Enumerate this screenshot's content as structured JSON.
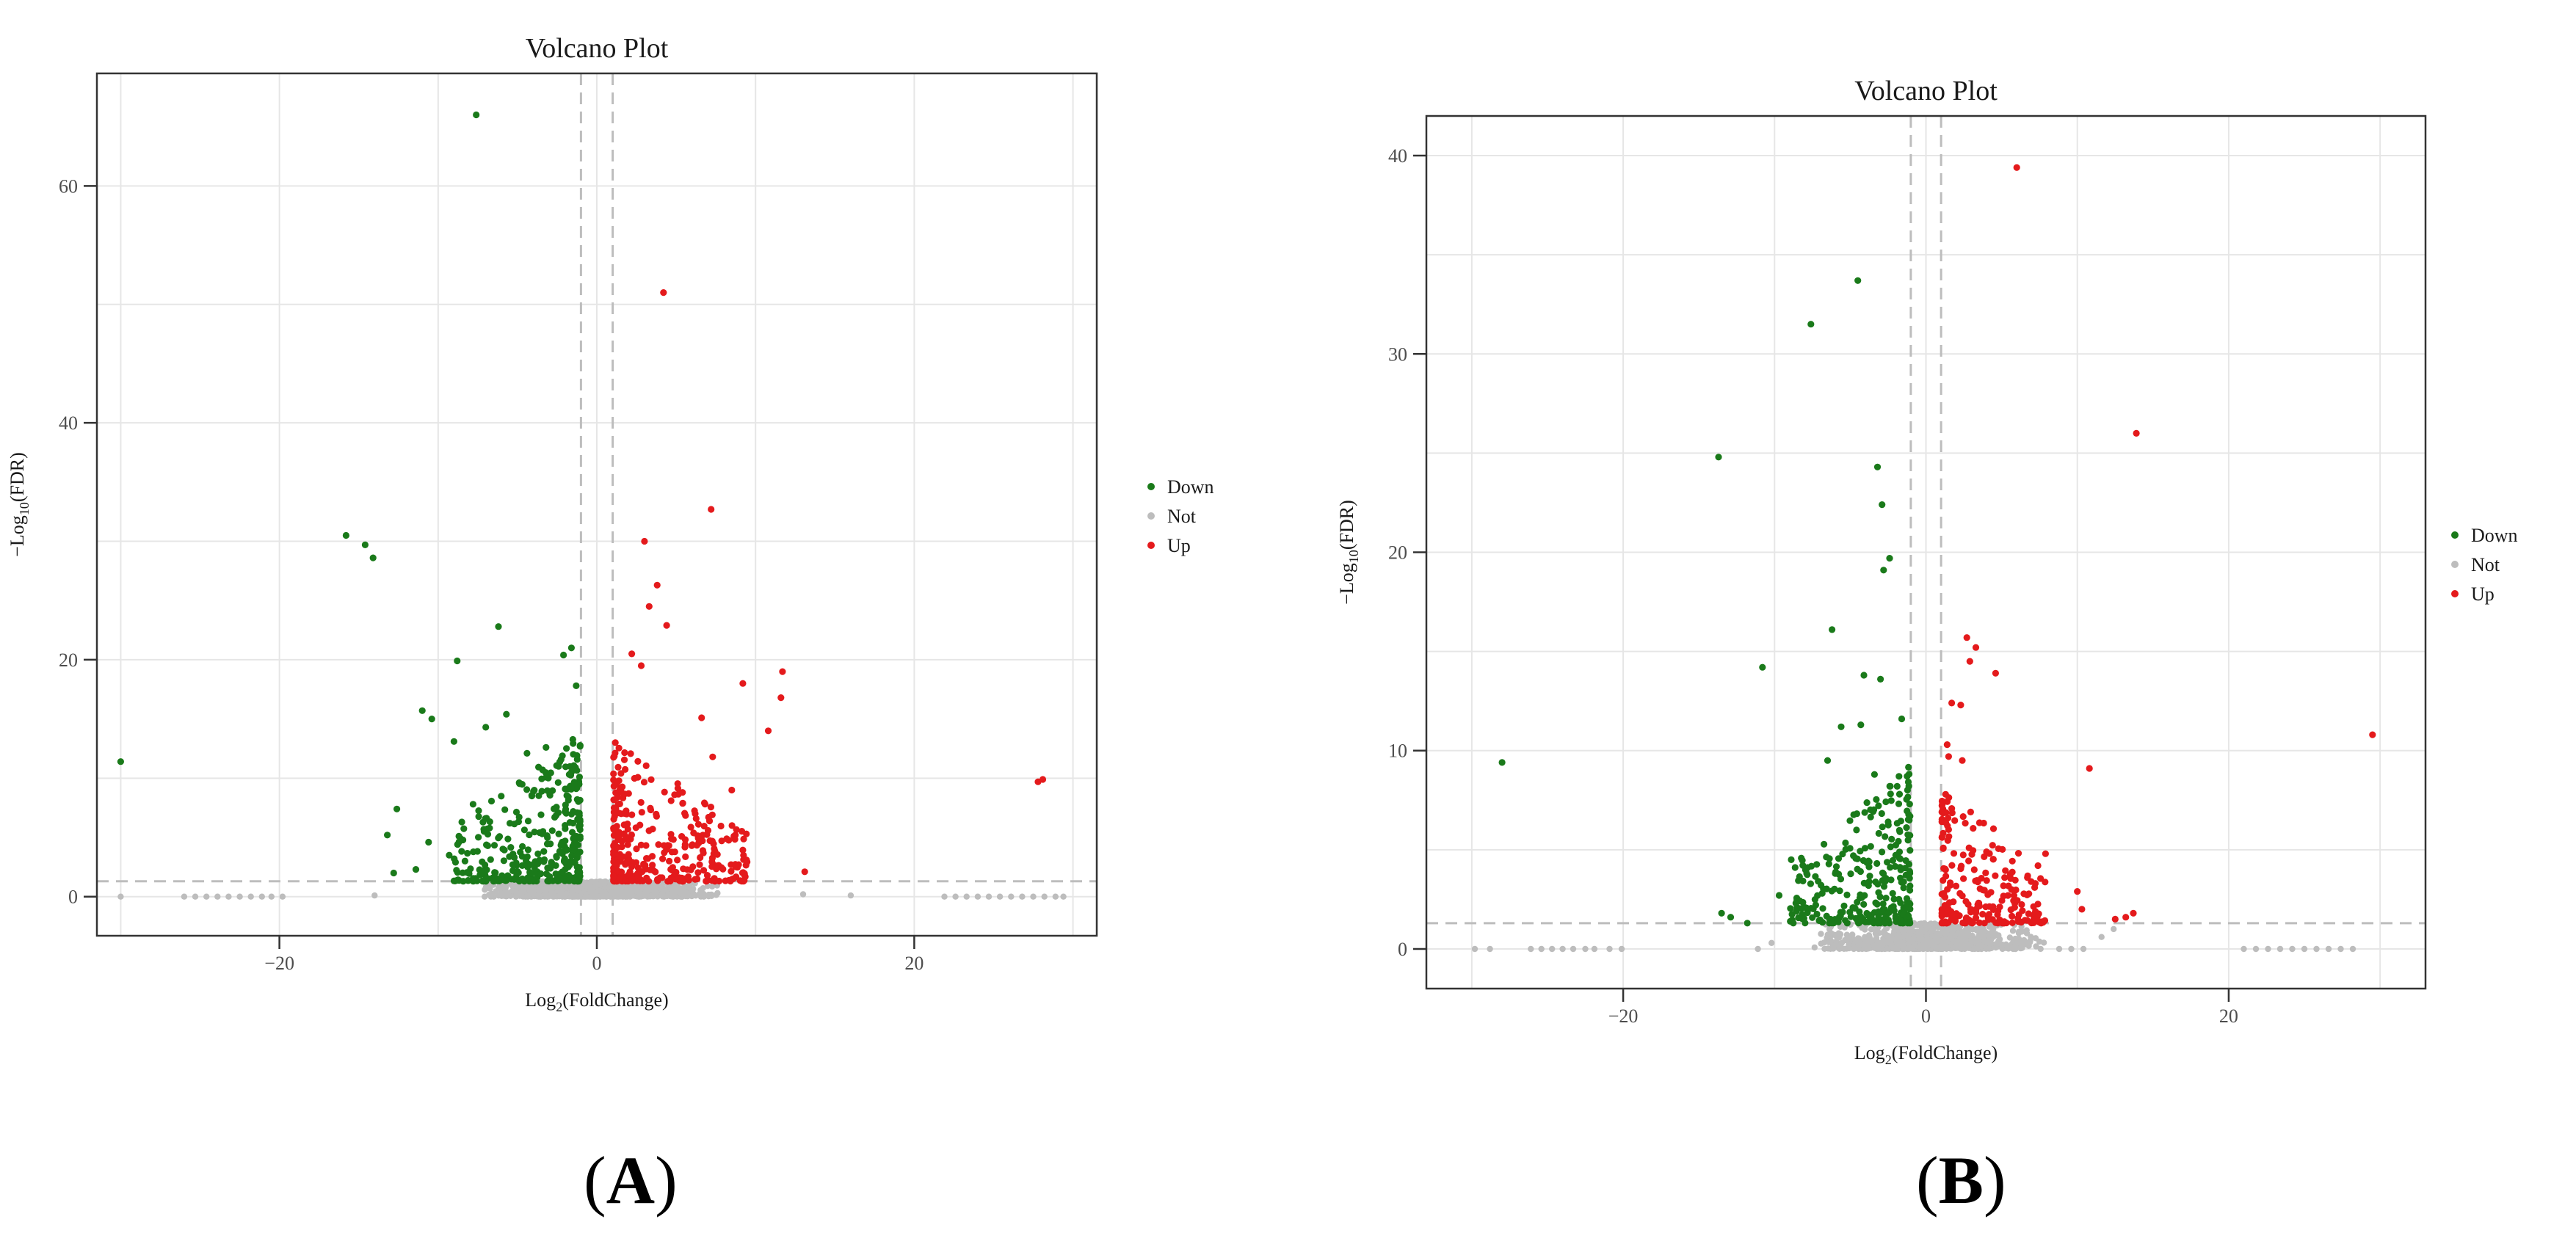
{
  "chart_data": [
    {
      "type": "scatter",
      "panel_label": "A",
      "title": "Volcano Plot",
      "xlabel_main": "Log",
      "xlabel_sub": "2",
      "xlabel_tail": "(FoldChange)",
      "ylabel_main": "−Log",
      "ylabel_sub": "10",
      "ylabel_tail": "(FDR)",
      "xlim": [
        -31.5,
        31.5
      ],
      "ylim": [
        -3.3,
        69.5
      ],
      "x_ticks": [
        -20,
        0,
        20
      ],
      "y_ticks": [
        0,
        20,
        40,
        60
      ],
      "x_tick_labels": [
        "−20",
        "0",
        "20"
      ],
      "y_tick_labels": [
        "0",
        "20",
        "40",
        "60"
      ],
      "threshold_fc": [
        -1,
        1
      ],
      "threshold_fdr": 1.3,
      "grid": true,
      "legend": {
        "position": "right",
        "entries": [
          "Down",
          "Not",
          "Up"
        ]
      },
      "series": [
        {
          "name": "Down",
          "color": "#1a7a1a",
          "points": [
            [
              -7.6,
              66.0
            ],
            [
              -15.8,
              30.5
            ],
            [
              -14.6,
              29.7
            ],
            [
              -14.1,
              28.6
            ],
            [
              -6.2,
              22.8
            ],
            [
              -30.0,
              11.4
            ],
            [
              -8.8,
              19.9
            ],
            [
              -2.1,
              20.4
            ],
            [
              -1.6,
              21.0
            ],
            [
              -1.3,
              17.8
            ],
            [
              -11.0,
              15.7
            ],
            [
              -10.4,
              15.0
            ],
            [
              -9.0,
              13.1
            ],
            [
              -7.0,
              14.3
            ],
            [
              -5.7,
              15.4
            ],
            [
              -4.4,
              12.1
            ],
            [
              -3.2,
              12.6
            ],
            [
              -12.6,
              7.4
            ],
            [
              -13.2,
              5.2
            ],
            [
              -10.6,
              4.6
            ],
            [
              -12.8,
              2.0
            ],
            [
              -11.4,
              2.3
            ],
            [
              -9.3,
              3.5
            ],
            [
              -7.8,
              7.8
            ]
          ],
          "cluster": {
            "count": 360,
            "x_range": [
              -9.0,
              -1.05
            ],
            "y_max": 13.0
          }
        },
        {
          "name": "Not",
          "color": "#bdbdbd",
          "points": [
            [
              -30.0,
              0.0
            ],
            [
              -26.0,
              0.0
            ],
            [
              -25.3,
              0.0
            ],
            [
              -24.6,
              0.0
            ],
            [
              -23.9,
              0.0
            ],
            [
              -23.2,
              0.0
            ],
            [
              -22.5,
              0.0
            ],
            [
              -21.8,
              0.0
            ],
            [
              -21.1,
              0.0
            ],
            [
              -20.5,
              0.0
            ],
            [
              -19.8,
              0.0
            ],
            [
              21.9,
              0.0
            ],
            [
              22.6,
              0.0
            ],
            [
              23.3,
              0.0
            ],
            [
              24.0,
              0.0
            ],
            [
              24.7,
              0.0
            ],
            [
              25.4,
              0.0
            ],
            [
              26.1,
              0.0
            ],
            [
              26.8,
              0.0
            ],
            [
              27.5,
              0.0
            ],
            [
              28.2,
              0.0
            ],
            [
              28.9,
              0.0
            ],
            [
              29.4,
              0.0
            ],
            [
              13.0,
              0.2
            ],
            [
              16.0,
              0.1
            ],
            [
              -14.0,
              0.1
            ]
          ],
          "cluster": {
            "count": 950,
            "x_range": [
              -8.0,
              8.0
            ],
            "y_max": 1.3
          }
        },
        {
          "name": "Up",
          "color": "#e41a1c",
          "points": [
            [
              4.2,
              51.0
            ],
            [
              7.2,
              32.7
            ],
            [
              3.0,
              30.0
            ],
            [
              3.8,
              26.3
            ],
            [
              3.3,
              24.5
            ],
            [
              4.4,
              22.9
            ],
            [
              11.7,
              19.0
            ],
            [
              11.6,
              16.8
            ],
            [
              9.2,
              18.0
            ],
            [
              10.8,
              14.0
            ],
            [
              6.6,
              15.1
            ],
            [
              13.1,
              2.1
            ],
            [
              27.8,
              9.7
            ],
            [
              28.1,
              9.9
            ],
            [
              2.2,
              20.5
            ],
            [
              2.8,
              19.5
            ],
            [
              7.3,
              11.8
            ],
            [
              8.5,
              9.0
            ],
            [
              6.2,
              7.0
            ],
            [
              5.4,
              8.8
            ]
          ],
          "cluster": {
            "count": 330,
            "x_range": [
              1.05,
              9.5
            ],
            "y_max": 12.0
          }
        }
      ]
    },
    {
      "type": "scatter",
      "panel_label": "B",
      "title": "Volcano Plot",
      "xlabel_main": "Log",
      "xlabel_sub": "2",
      "xlabel_tail": "(FoldChange)",
      "ylabel_main": "−Log",
      "ylabel_sub": "10",
      "ylabel_tail": "(FDR)",
      "xlim": [
        -33.0,
        33.0
      ],
      "ylim": [
        -2.0,
        42.0
      ],
      "x_ticks": [
        -20,
        0,
        20
      ],
      "y_ticks": [
        0,
        10,
        20,
        30,
        40
      ],
      "x_tick_labels": [
        "−20",
        "0",
        "20"
      ],
      "y_tick_labels": [
        "0",
        "10",
        "20",
        "30",
        "40"
      ],
      "threshold_fc": [
        -1,
        1
      ],
      "threshold_fdr": 1.3,
      "grid": true,
      "legend": {
        "position": "right",
        "entries": [
          "Down",
          "Not",
          "Up"
        ]
      },
      "series": [
        {
          "name": "Down",
          "color": "#1a7a1a",
          "points": [
            [
              -4.5,
              33.7
            ],
            [
              -7.6,
              31.5
            ],
            [
              -13.7,
              24.8
            ],
            [
              -3.2,
              24.3
            ],
            [
              -2.9,
              22.4
            ],
            [
              -2.4,
              19.7
            ],
            [
              -2.8,
              19.1
            ],
            [
              -10.8,
              14.2
            ],
            [
              -6.2,
              16.1
            ],
            [
              -4.1,
              13.8
            ],
            [
              -3.0,
              13.6
            ],
            [
              -1.6,
              11.6
            ],
            [
              -28.0,
              9.4
            ],
            [
              -13.5,
              1.8
            ],
            [
              -12.9,
              1.6
            ],
            [
              -11.8,
              1.3
            ],
            [
              -8.9,
              4.5
            ],
            [
              -9.7,
              2.7
            ],
            [
              -5.6,
              11.2
            ],
            [
              -4.3,
              11.3
            ],
            [
              -6.5,
              9.5
            ],
            [
              -3.4,
              8.8
            ]
          ],
          "cluster": {
            "count": 300,
            "x_range": [
              -9.0,
              -1.05
            ],
            "y_max": 8.0
          }
        },
        {
          "name": "Not",
          "color": "#bdbdbd",
          "points": [
            [
              -29.8,
              0.0
            ],
            [
              -28.8,
              0.0
            ],
            [
              -26.1,
              0.0
            ],
            [
              -25.4,
              0.0
            ],
            [
              -24.7,
              0.0
            ],
            [
              -24.0,
              0.0
            ],
            [
              -23.3,
              0.0
            ],
            [
              -22.5,
              0.0
            ],
            [
              -21.9,
              0.0
            ],
            [
              -20.9,
              0.0
            ],
            [
              -20.1,
              0.0
            ],
            [
              21.0,
              0.0
            ],
            [
              21.8,
              0.0
            ],
            [
              22.6,
              0.0
            ],
            [
              23.4,
              0.0
            ],
            [
              24.2,
              0.0
            ],
            [
              25.0,
              0.0
            ],
            [
              25.8,
              0.0
            ],
            [
              26.6,
              0.0
            ],
            [
              27.4,
              0.0
            ],
            [
              28.2,
              0.0
            ],
            [
              8.8,
              0.0
            ],
            [
              9.6,
              0.0
            ],
            [
              10.4,
              0.0
            ],
            [
              11.6,
              0.6
            ],
            [
              12.4,
              1.0
            ],
            [
              -10.2,
              0.3
            ],
            [
              -11.1,
              0.0
            ]
          ],
          "cluster": {
            "count": 850,
            "x_range": [
              -8.0,
              8.0
            ],
            "y_max": 1.3
          }
        },
        {
          "name": "Up",
          "color": "#e41a1c",
          "points": [
            [
              6.0,
              39.4
            ],
            [
              13.9,
              26.0
            ],
            [
              29.5,
              10.8
            ],
            [
              2.7,
              15.7
            ],
            [
              3.3,
              15.2
            ],
            [
              2.9,
              14.5
            ],
            [
              4.6,
              13.9
            ],
            [
              1.7,
              12.4
            ],
            [
              2.3,
              12.3
            ],
            [
              1.5,
              9.7
            ],
            [
              1.4,
              10.3
            ],
            [
              2.4,
              9.5
            ],
            [
              10.8,
              9.1
            ],
            [
              13.2,
              1.6
            ],
            [
              13.7,
              1.8
            ],
            [
              12.5,
              1.5
            ],
            [
              10.0,
              2.9
            ],
            [
              10.3,
              2.0
            ],
            [
              7.9,
              4.8
            ],
            [
              7.4,
              4.2
            ],
            [
              6.7,
              3.6
            ],
            [
              5.2,
              3.6
            ]
          ],
          "cluster": {
            "count": 220,
            "x_range": [
              1.05,
              8.0
            ],
            "y_max": 7.0
          }
        }
      ]
    }
  ],
  "figure_labels": {
    "a": "A",
    "b": "B"
  }
}
